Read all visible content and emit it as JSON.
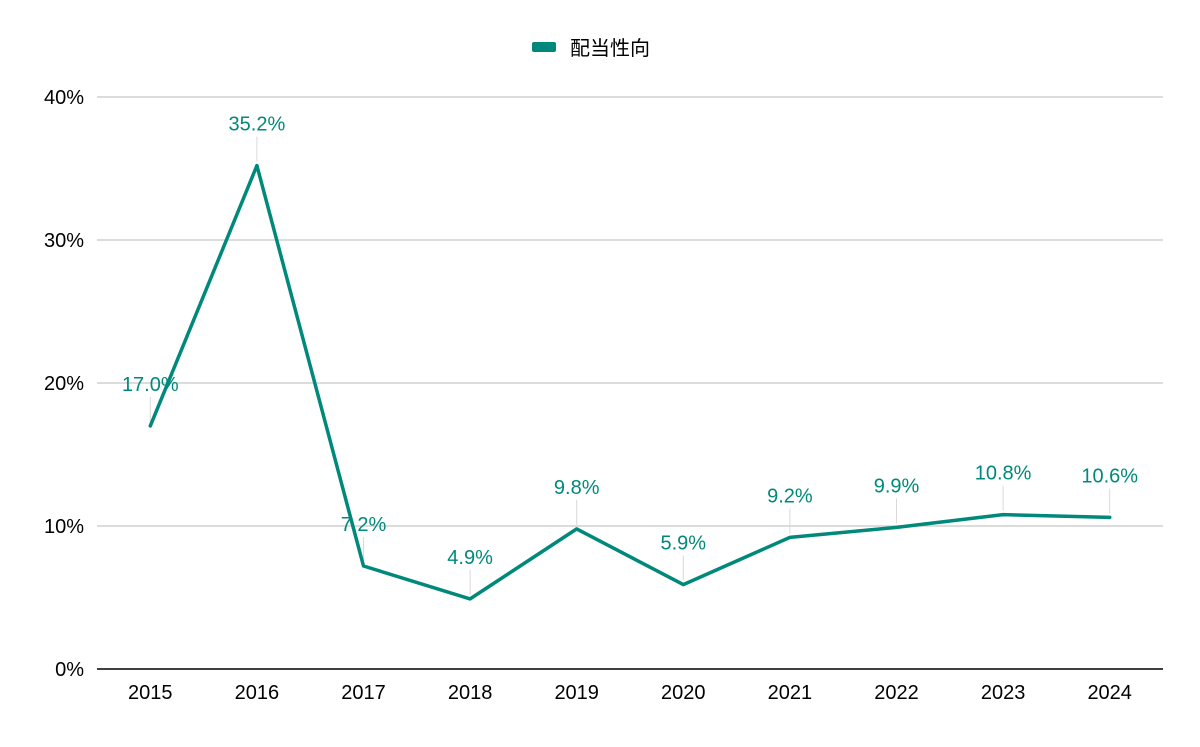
{
  "chart_data": {
    "type": "line",
    "title": "",
    "xlabel": "",
    "ylabel": "",
    "categories": [
      "2015",
      "2016",
      "2017",
      "2018",
      "2019",
      "2020",
      "2021",
      "2022",
      "2023",
      "2024"
    ],
    "series": [
      {
        "name": "配当性向",
        "values": [
          17.0,
          35.2,
          7.2,
          4.9,
          9.8,
          5.9,
          9.2,
          9.9,
          10.8,
          10.6
        ],
        "labels": [
          "17.0%",
          "35.2%",
          "7.2%",
          "4.9%",
          "9.8%",
          "5.9%",
          "9.2%",
          "9.9%",
          "10.8%",
          "10.6%"
        ],
        "color": "#00897b"
      }
    ],
    "ylim": [
      0,
      40
    ],
    "yticks": [
      0,
      10,
      20,
      30,
      40
    ],
    "ytick_labels": [
      "0%",
      "10%",
      "20%",
      "30%",
      "40%"
    ],
    "grid": true,
    "legend_position": "top-center",
    "gridline_color": "#c8c8c8",
    "axis_color": "#000000"
  }
}
